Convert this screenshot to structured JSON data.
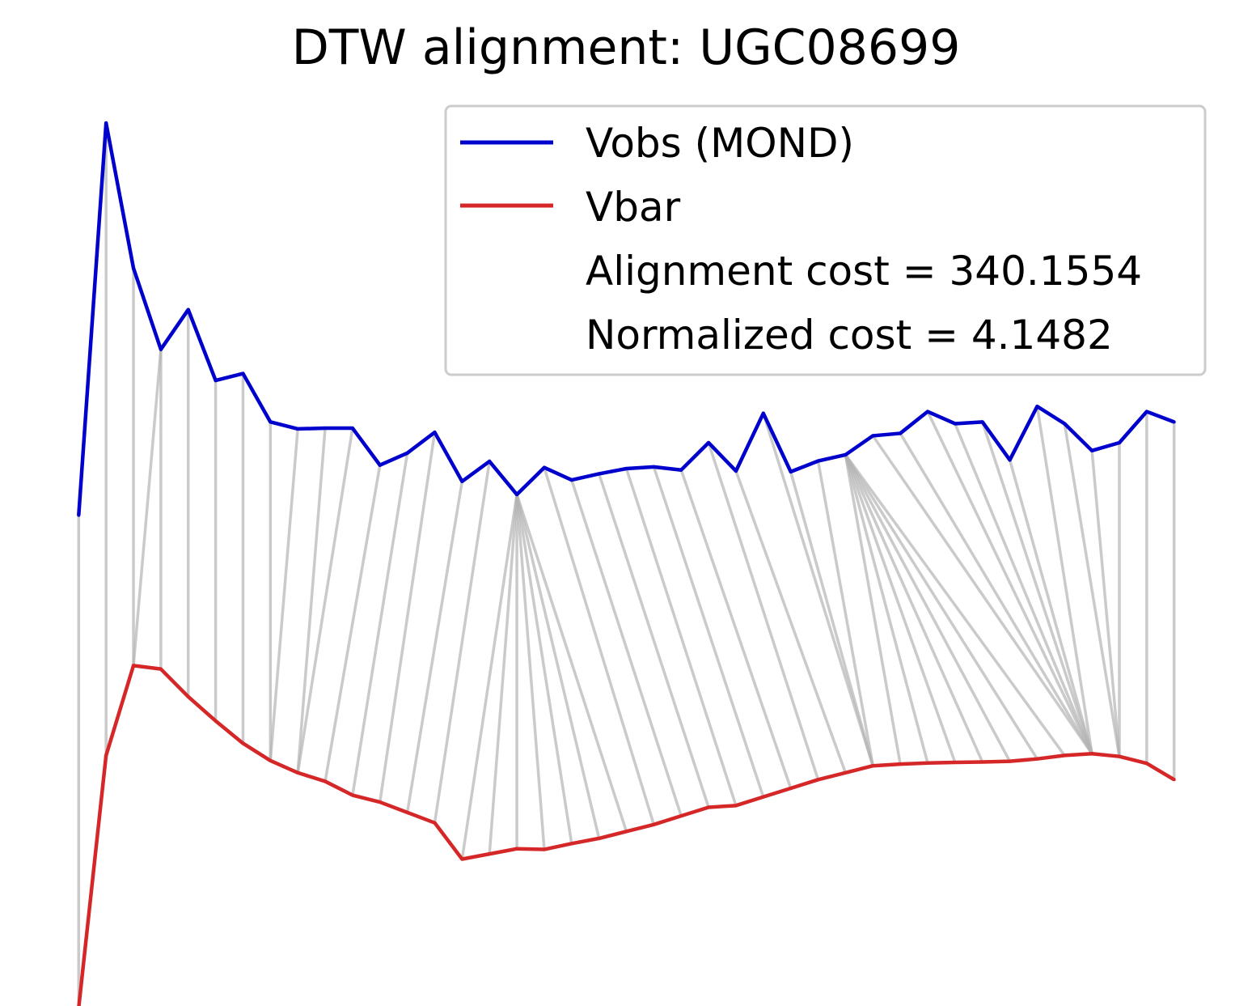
{
  "chart_data": {
    "type": "line",
    "title": "DTW alignment: UGC08699",
    "xlabel": "",
    "ylabel": "",
    "axes_visible": false,
    "grid": false,
    "legend_position": "top-right",
    "legend": {
      "entries": [
        {
          "label": "Vobs (MOND)",
          "color": "#0000cc"
        },
        {
          "label": "Vbar",
          "color": "#d62728"
        },
        {
          "label": "Alignment cost = 340.1554"
        },
        {
          "label": "Normalized cost = 4.1482"
        }
      ]
    },
    "x": [
      0,
      1,
      2,
      3,
      4,
      5,
      6,
      7,
      8,
      9,
      10,
      11,
      12,
      13,
      14,
      15,
      16,
      17,
      18,
      19,
      20,
      21,
      22,
      23,
      24,
      25,
      26,
      27,
      28,
      29,
      30,
      31,
      32,
      33,
      34,
      35,
      36,
      37,
      38,
      39,
      40
    ],
    "series": [
      {
        "name": "Vobs (MOND)",
        "color": "#0000cc",
        "values": [
          -13.5,
          100,
          58,
          34.5,
          46,
          25.5,
          27.5,
          13.5,
          11.5,
          11.7,
          11.7,
          1,
          4.5,
          10.5,
          -3.7,
          2.1,
          -7.5,
          0.3,
          -3.3,
          -1.5,
          0,
          0.5,
          -0.4,
          7.5,
          -0.7,
          16,
          -0.9,
          2.2,
          4.0,
          9.5,
          10.2,
          16.5,
          13,
          13.5,
          2.5,
          18,
          13,
          5.2,
          7.5,
          16.5,
          13.5
        ]
      },
      {
        "name": "Vbar",
        "color": "#d62728",
        "values": [
          -156,
          -83,
          -57,
          -58,
          -66,
          -73,
          -79.5,
          -84.5,
          -88,
          -90.5,
          -94.5,
          -96.5,
          -99.5,
          -102.5,
          -113,
          -111.5,
          -110,
          -110.2,
          -108.5,
          -107,
          -105,
          -103,
          -100.5,
          -98,
          -97.5,
          -95,
          -92.5,
          -90,
          -88,
          -86,
          -85.5,
          -85.2,
          -85,
          -84.9,
          -84.7,
          -84,
          -83,
          -82.5,
          -83.3,
          -85.3,
          -90
        ]
      }
    ],
    "alignment_path": [
      [
        0,
        0
      ],
      [
        1,
        1
      ],
      [
        2,
        2
      ],
      [
        3,
        2
      ],
      [
        3,
        3
      ],
      [
        4,
        4
      ],
      [
        5,
        5
      ],
      [
        6,
        6
      ],
      [
        7,
        7
      ],
      [
        8,
        7
      ],
      [
        9,
        8
      ],
      [
        10,
        8
      ],
      [
        11,
        9
      ],
      [
        12,
        10
      ],
      [
        13,
        11
      ],
      [
        14,
        12
      ],
      [
        15,
        13
      ],
      [
        16,
        14
      ],
      [
        16,
        15
      ],
      [
        16,
        16
      ],
      [
        16,
        17
      ],
      [
        16,
        18
      ],
      [
        16,
        19
      ],
      [
        16,
        20
      ],
      [
        17,
        21
      ],
      [
        18,
        22
      ],
      [
        19,
        23
      ],
      [
        20,
        24
      ],
      [
        21,
        25
      ],
      [
        22,
        26
      ],
      [
        23,
        27
      ],
      [
        24,
        28
      ],
      [
        25,
        29
      ],
      [
        26,
        29
      ],
      [
        27,
        29
      ],
      [
        28,
        30
      ],
      [
        28,
        31
      ],
      [
        28,
        32
      ],
      [
        28,
        33
      ],
      [
        28,
        34
      ],
      [
        28,
        35
      ],
      [
        28,
        36
      ],
      [
        29,
        37
      ],
      [
        30,
        37
      ],
      [
        31,
        37
      ],
      [
        32,
        37
      ],
      [
        33,
        37
      ],
      [
        34,
        37
      ],
      [
        35,
        37
      ],
      [
        36,
        38
      ],
      [
        37,
        38
      ],
      [
        38,
        38
      ],
      [
        39,
        39
      ],
      [
        40,
        40
      ]
    ],
    "colors": {
      "vobs": "#0000cc",
      "vbar": "#d62728",
      "links": "#b3b3b3"
    }
  }
}
